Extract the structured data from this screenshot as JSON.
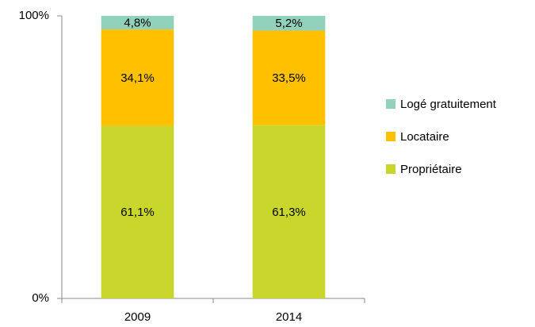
{
  "chart_data": {
    "type": "stacked_bar",
    "categories": [
      "2009",
      "2014"
    ],
    "series": [
      {
        "name": "Propriétaire",
        "color": "#c9d62c",
        "values": [
          61.1,
          61.3
        ],
        "value_labels": [
          "61,1%",
          "61,3%"
        ]
      },
      {
        "name": "Locataire",
        "color": "#ffc000",
        "values": [
          34.1,
          33.5
        ],
        "value_labels": [
          "34,1%",
          "33,5%"
        ]
      },
      {
        "name": "Logé gratuitement",
        "color": "#92d2bd",
        "values": [
          4.8,
          5.2
        ],
        "value_labels": [
          "4,8%",
          "5,2%"
        ]
      }
    ],
    "ylim": [
      0,
      100
    ],
    "yticks": [
      {
        "value": 0,
        "label": "0%"
      },
      {
        "value": 100,
        "label": "100%"
      }
    ],
    "legend": "right"
  }
}
